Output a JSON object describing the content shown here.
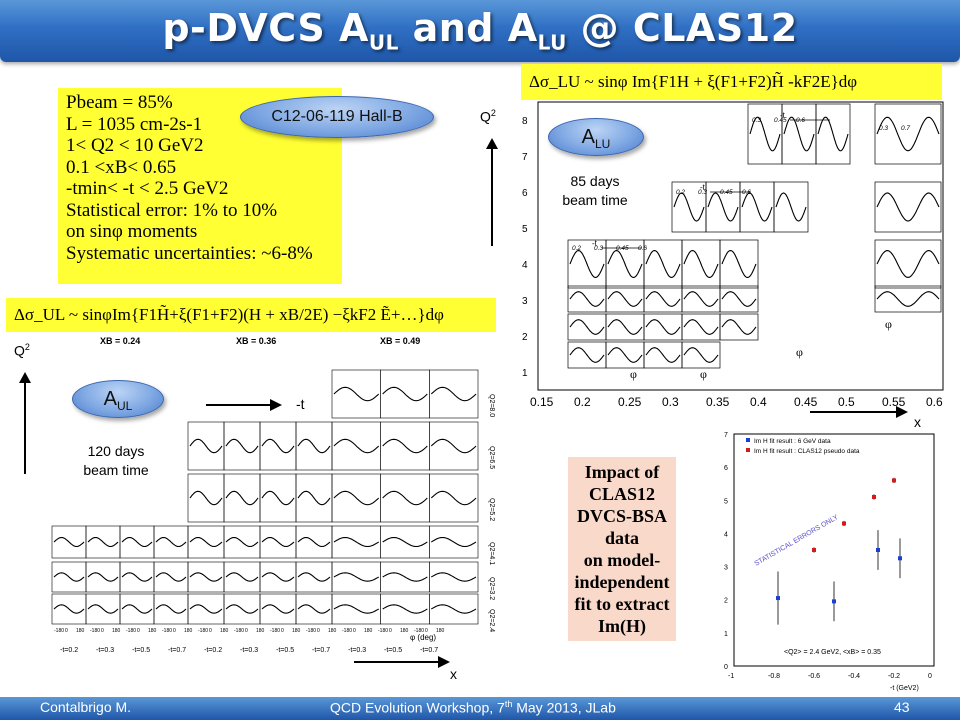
{
  "title": {
    "pre": "p-DVCS A",
    "sub1": "UL",
    "mid": " and A",
    "sub2": "LU",
    "post": " @ CLAS12"
  },
  "params": {
    "lines": [
      "Pbeam = 85%",
      "L = 1035 cm-2s-1",
      "1< Q2 < 10 GeV2",
      "0.1 <xB< 0.65",
      "-tmin< -t < 2.5 GeV2",
      "Statistical error: 1% to 10%",
      "on sinφ moments",
      "Systematic uncertainties: ~6-8%"
    ]
  },
  "proposal_badge": "C12-06-119  Hall-B",
  "alu": {
    "formula": "Δσ_LU ~ sinφ Im{F1H + ξ(F1+F2)H̃ -kF2E}dφ",
    "bubble_main": "A",
    "bubble_sub": "LU",
    "days_line1": "85 days",
    "days_line2": "beam time",
    "q2_label": "Q",
    "q2_sup": "2",
    "x_label": "x",
    "x_ticks": [
      "0.15",
      "0.2",
      "0.25",
      "0.3",
      "0.35",
      "0.4",
      "0.45",
      "0.5",
      "0.55",
      "0.6"
    ],
    "y_ticks": [
      "8",
      "7",
      "6",
      "5",
      "4",
      "3",
      "2",
      "1"
    ],
    "t_label": "-t",
    "phi_label": "φ",
    "row_labels": [
      [
        "0.3",
        "0.45",
        "0.6"
      ],
      [
        "0.3",
        "0.45",
        "0.6"
      ],
      [
        "0.3",
        "0.7"
      ],
      [
        "0.2",
        "0.3",
        "0.45",
        "0.6"
      ],
      [
        "0.2",
        "0.3",
        "0.45",
        "0.6"
      ]
    ]
  },
  "aul": {
    "formula": "Δσ_UL ~ sinφIm{F1H̃+ξ(F1+F2)(H + xB/2E) −ξkF2 Ẽ+…}dφ",
    "bubble_main": "A",
    "bubble_sub": "UL",
    "days_line1": "120 days",
    "days_line2": "beam time",
    "q2_label": "Q",
    "q2_sup": "2",
    "t_label": "-t",
    "x_label": "x",
    "xb_labels": [
      "XB = 0.24",
      "XB = 0.36",
      "XB = 0.49"
    ],
    "q2_side": [
      "Q2=8.0",
      "Q2=6.5",
      "Q2=5.2",
      "Q2=4.1",
      "Q2=3.2",
      "Q2=2.4"
    ],
    "t_bottom": [
      "-t=0.2",
      "-t=0.3",
      "-t=0.5",
      "-t=0.7",
      "-t=0.2",
      "-t=0.3",
      "-t=0.5",
      "-t=0.7",
      "-t=0.3",
      "-t=0.5",
      "-t=0.7"
    ],
    "phi_axis": "φ (deg)",
    "phi_ticks": [
      "-180",
      "0",
      "180"
    ]
  },
  "impact": {
    "lines": [
      "Impact of",
      "CLAS12",
      "DVCS-BSA",
      "data",
      "on model-",
      "independent",
      "fit to extract",
      "Im(H)"
    ]
  },
  "fit_chart": {
    "legend": [
      "Im H fit result : 6 GeV data",
      "Im H fit result : CLAS12 pseudo data"
    ],
    "note": "STATISTICAL ERRORS ONLY",
    "kin": "<Q2> = 2.4 GeV2, <xB> = 0.35",
    "x_label": "-t (GeV2)",
    "x_ticks": [
      "-1",
      "-0.8",
      "-0.6",
      "-0.4",
      "-0.2",
      "0"
    ],
    "y_ticks": [
      "7",
      "6",
      "5",
      "4",
      "3",
      "2",
      "1",
      "0"
    ],
    "colors": {
      "blue": "#1a3fd8",
      "red": "#d41a1a"
    }
  },
  "chart_data": {
    "type": "scatter",
    "xlabel": "-t (GeV2)",
    "xlim": [
      -1,
      0
    ],
    "ylim": [
      0,
      7
    ],
    "series": [
      {
        "name": "Im H fit result : 6 GeV data",
        "x": [
          -0.78,
          -0.5,
          -0.28,
          -0.17
        ],
        "y": [
          2.05,
          1.95,
          3.5,
          3.25
        ],
        "err": [
          0.8,
          0.6,
          0.6,
          0.6
        ]
      },
      {
        "name": "Im H fit result : CLAS12 pseudo data",
        "x": [
          -0.6,
          -0.45,
          -0.3,
          -0.2
        ],
        "y": [
          3.5,
          4.3,
          5.1,
          5.6
        ],
        "err": [
          0.08,
          0.08,
          0.08,
          0.08
        ]
      }
    ]
  },
  "footer": {
    "author": "Contalbrigo M.",
    "event_pre": "QCD Evolution Workshop, 7",
    "event_sup": "th",
    "event_post": " May 2013, JLab",
    "page": "43"
  }
}
